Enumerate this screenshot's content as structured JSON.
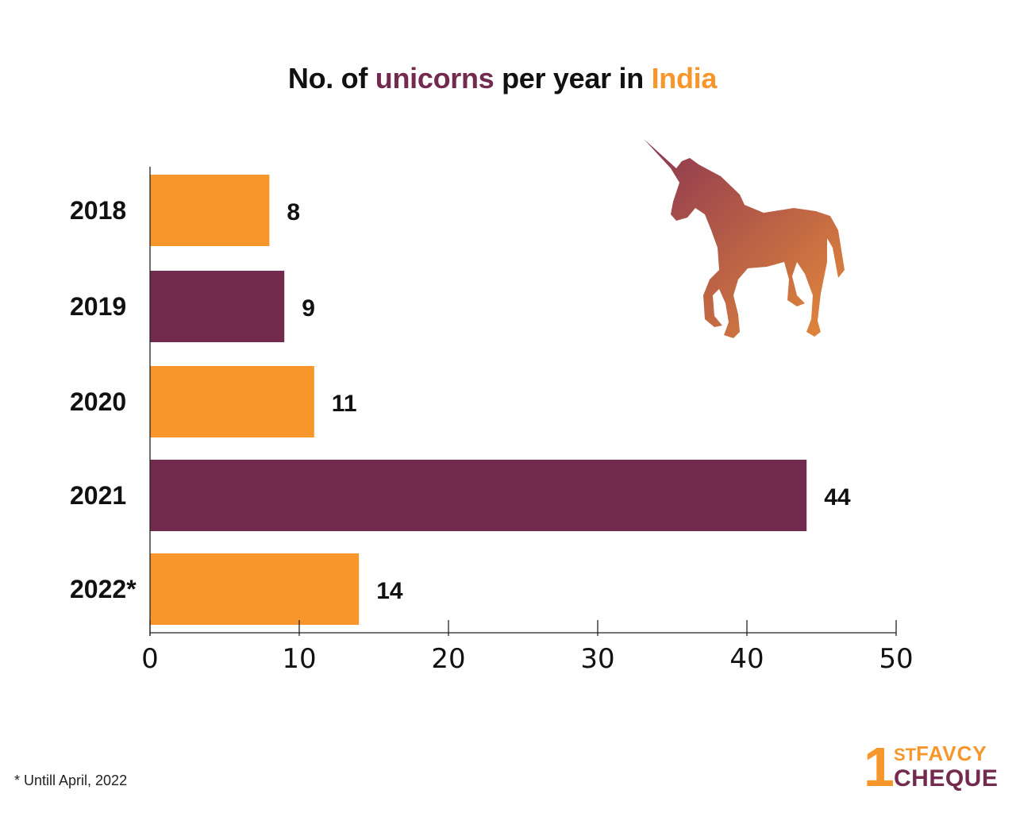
{
  "title": {
    "part1": "No. of ",
    "part2": "unicorns",
    "part3": " per year in ",
    "part4": "India"
  },
  "chart_data": {
    "type": "bar",
    "orientation": "horizontal",
    "title": "No. of unicorns per year in India",
    "categories": [
      "2018",
      "2019",
      "2020",
      "2021",
      "2022*"
    ],
    "values": [
      8,
      9,
      11,
      44,
      14
    ],
    "bar_colors": [
      "#f7962a",
      "#722a4f",
      "#f7962a",
      "#722a4f",
      "#f7962a"
    ],
    "xlim": [
      0,
      50
    ],
    "xticks": [
      0,
      10,
      20,
      30,
      40,
      50
    ],
    "xlabel": "",
    "ylabel": "",
    "grid": false,
    "legend": "none",
    "data_labels": true
  },
  "colors": {
    "orange": "#f7962a",
    "purple": "#722a4f"
  },
  "footnote": "* Untill April, 2022",
  "logo": {
    "number": "1",
    "superscript": "ST",
    "top_text": "FAVCY",
    "bottom_text": "CHEQUE"
  },
  "illustration": {
    "icon": "unicorn-icon"
  }
}
